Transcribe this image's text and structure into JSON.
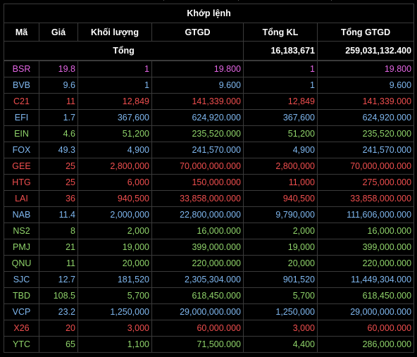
{
  "header": {
    "title": "Khớp lệnh",
    "columns": [
      "Mã",
      "Giá",
      "Khối lượng",
      "GTGD",
      "Tổng KL",
      "Tổng GTGD"
    ]
  },
  "totals": {
    "label": "Tổng",
    "total_volume": "16,183,671",
    "total_value": "259,031,132.400"
  },
  "colors": {
    "ceiling": "#e566e5",
    "reference": "#f0d030",
    "decrease": "#ef4e4e",
    "increase": "#8fd36a",
    "floor": "#7fb7ef"
  },
  "rows": [
    {
      "ticker": "BSR",
      "price": "19.8",
      "volume": "1",
      "value": "19.800",
      "total_volume": "1",
      "total_value": "19.800",
      "color": "c-fuchsia"
    },
    {
      "ticker": "BVB",
      "price": "9.6",
      "volume": "1",
      "value": "9.600",
      "total_volume": "1",
      "total_value": "9.600",
      "color": "c-blue"
    },
    {
      "ticker": "C21",
      "price": "11",
      "volume": "12,849",
      "value": "141,339.000",
      "total_volume": "12,849",
      "total_value": "141,339.000",
      "color": "c-red"
    },
    {
      "ticker": "EFI",
      "price": "1.7",
      "volume": "367,600",
      "value": "624,920.000",
      "total_volume": "367,600",
      "total_value": "624,920.000",
      "color": "c-blue"
    },
    {
      "ticker": "EIN",
      "price": "4.6",
      "volume": "51,200",
      "value": "235,520.000",
      "total_volume": "51,200",
      "total_value": "235,520.000",
      "color": "c-green"
    },
    {
      "ticker": "FOX",
      "price": "49.3",
      "volume": "4,900",
      "value": "241,570.000",
      "total_volume": "4,900",
      "total_value": "241,570.000",
      "color": "c-blue"
    },
    {
      "ticker": "GEE",
      "price": "25",
      "volume": "2,800,000",
      "value": "70,000,000.000",
      "total_volume": "2,800,000",
      "total_value": "70,000,000.000",
      "color": "c-red"
    },
    {
      "ticker": "HTG",
      "price": "25",
      "volume": "6,000",
      "value": "150,000.000",
      "total_volume": "11,000",
      "total_value": "275,000.000",
      "color": "c-red"
    },
    {
      "ticker": "LAI",
      "price": "36",
      "volume": "940,500",
      "value": "33,858,000.000",
      "total_volume": "940,500",
      "total_value": "33,858,000.000",
      "color": "c-red"
    },
    {
      "ticker": "NAB",
      "price": "11.4",
      "volume": "2,000,000",
      "value": "22,800,000.000",
      "total_volume": "9,790,000",
      "total_value": "111,606,000.000",
      "color": "c-blue"
    },
    {
      "ticker": "NS2",
      "price": "8",
      "volume": "2,000",
      "value": "16,000.000",
      "total_volume": "2,000",
      "total_value": "16,000.000",
      "color": "c-green"
    },
    {
      "ticker": "PMJ",
      "price": "21",
      "volume": "19,000",
      "value": "399,000.000",
      "total_volume": "19,000",
      "total_value": "399,000.000",
      "color": "c-green"
    },
    {
      "ticker": "QNU",
      "price": "11",
      "volume": "20,000",
      "value": "220,000.000",
      "total_volume": "20,000",
      "total_value": "220,000.000",
      "color": "c-green"
    },
    {
      "ticker": "SJC",
      "price": "12.7",
      "volume": "181,520",
      "value": "2,305,304.000",
      "total_volume": "901,520",
      "total_value": "11,449,304.000",
      "color": "c-blue"
    },
    {
      "ticker": "TBD",
      "price": "108.5",
      "volume": "5,700",
      "value": "618,450.000",
      "total_volume": "5,700",
      "total_value": "618,450.000",
      "color": "c-green"
    },
    {
      "ticker": "VCP",
      "price": "23.2",
      "volume": "1,250,000",
      "value": "29,000,000.000",
      "total_volume": "1,250,000",
      "total_value": "29,000,000.000",
      "color": "c-blue"
    },
    {
      "ticker": "X26",
      "price": "20",
      "volume": "3,000",
      "value": "60,000.000",
      "total_volume": "3,000",
      "total_value": "60,000.000",
      "color": "c-red"
    },
    {
      "ticker": "YTC",
      "price": "65",
      "volume": "1,100",
      "value": "71,500.000",
      "total_volume": "4,400",
      "total_value": "286,000.000",
      "color": "c-green"
    }
  ]
}
